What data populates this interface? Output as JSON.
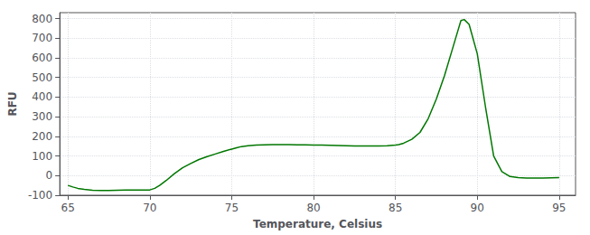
{
  "chart_data": {
    "type": "line",
    "title": "",
    "xlabel": "Temperature, Celsius",
    "ylabel": "RFU",
    "x": [
      65.0,
      65.3,
      65.6,
      66.0,
      66.5,
      67.0,
      67.5,
      68.0,
      68.5,
      69.0,
      69.5,
      70.0,
      70.3,
      70.6,
      71.0,
      71.5,
      72.0,
      72.5,
      73.0,
      73.5,
      74.0,
      74.5,
      75.0,
      75.3,
      75.6,
      76.0,
      76.5,
      77.0,
      77.5,
      78.0,
      78.5,
      79.0,
      79.5,
      80.0,
      80.5,
      81.0,
      81.5,
      82.0,
      82.5,
      83.0,
      83.5,
      84.0,
      84.5,
      85.0,
      85.2,
      85.5,
      86.0,
      86.5,
      87.0,
      87.5,
      88.0,
      88.5,
      89.0,
      89.2,
      89.5,
      90.0,
      90.5,
      91.0,
      91.5,
      92.0,
      92.5,
      93.0,
      93.5,
      94.0,
      94.5,
      95.0
    ],
    "values": [
      -50,
      -58,
      -65,
      -70,
      -75,
      -76,
      -76,
      -75,
      -74,
      -73,
      -73,
      -73,
      -65,
      -50,
      -25,
      10,
      40,
      62,
      82,
      97,
      110,
      123,
      135,
      142,
      148,
      152,
      155,
      157,
      158,
      158,
      158,
      157,
      157,
      156,
      155,
      154,
      153,
      152,
      151,
      151,
      151,
      151,
      152,
      155,
      158,
      165,
      185,
      220,
      290,
      390,
      510,
      650,
      790,
      795,
      770,
      620,
      350,
      100,
      20,
      -5,
      -10,
      -12,
      -12,
      -12,
      -11,
      -10
    ],
    "color": "#007700",
    "xlim": [
      64.5,
      96
    ],
    "ylim": [
      -100,
      830
    ],
    "xticks": [
      65,
      70,
      75,
      80,
      85,
      90,
      95
    ],
    "yticks": [
      -100,
      0,
      100,
      200,
      300,
      400,
      500,
      600,
      700,
      800
    ],
    "grid": true
  }
}
